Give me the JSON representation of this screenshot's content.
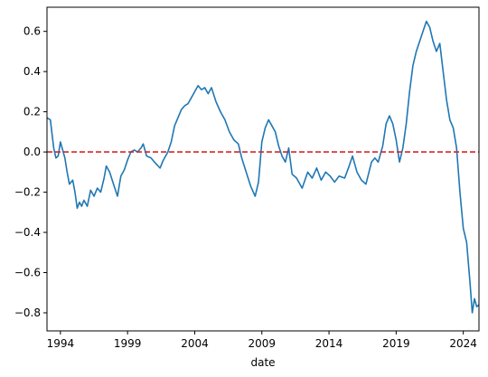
{
  "chart_data": {
    "type": "line",
    "title": "",
    "xlabel": "date",
    "ylabel": "",
    "xlim": [
      "1993-01",
      "2025-03"
    ],
    "ylim": [
      -0.89,
      0.72
    ],
    "grid": false,
    "legend": "none",
    "x_ticks": [
      {
        "value": "1994-01",
        "label": "1994"
      },
      {
        "value": "1999-01",
        "label": "1999"
      },
      {
        "value": "2004-01",
        "label": "2004"
      },
      {
        "value": "2009-01",
        "label": "2009"
      },
      {
        "value": "2014-01",
        "label": "2014"
      },
      {
        "value": "2019-01",
        "label": "2019"
      },
      {
        "value": "2024-01",
        "label": "2024"
      }
    ],
    "y_ticks": [
      {
        "value": 0.6,
        "label": "0.6"
      },
      {
        "value": 0.4,
        "label": "0.4"
      },
      {
        "value": 0.2,
        "label": "0.2"
      },
      {
        "value": 0.0,
        "label": "0.0"
      },
      {
        "value": -0.2,
        "label": "−0.2"
      },
      {
        "value": -0.4,
        "label": "−0.4"
      },
      {
        "value": -0.6,
        "label": "−0.6"
      },
      {
        "value": -0.8,
        "label": "−0.8"
      }
    ],
    "series": [
      {
        "color": "#1f77b4",
        "points": [
          {
            "x": "1993-01",
            "y": 0.17
          },
          {
            "x": "1993-04",
            "y": 0.16
          },
          {
            "x": "1993-07",
            "y": 0.02
          },
          {
            "x": "1993-09",
            "y": -0.03
          },
          {
            "x": "1993-11",
            "y": -0.02
          },
          {
            "x": "1994-01",
            "y": 0.05
          },
          {
            "x": "1994-03",
            "y": 0.01
          },
          {
            "x": "1994-05",
            "y": -0.03
          },
          {
            "x": "1994-07",
            "y": -0.1
          },
          {
            "x": "1994-09",
            "y": -0.16
          },
          {
            "x": "1994-12",
            "y": -0.14
          },
          {
            "x": "1995-02",
            "y": -0.2
          },
          {
            "x": "1995-04",
            "y": -0.28
          },
          {
            "x": "1995-06",
            "y": -0.25
          },
          {
            "x": "1995-08",
            "y": -0.27
          },
          {
            "x": "1995-10",
            "y": -0.24
          },
          {
            "x": "1996-01",
            "y": -0.27
          },
          {
            "x": "1996-04",
            "y": -0.19
          },
          {
            "x": "1996-07",
            "y": -0.22
          },
          {
            "x": "1996-10",
            "y": -0.18
          },
          {
            "x": "1997-01",
            "y": -0.2
          },
          {
            "x": "1997-04",
            "y": -0.13
          },
          {
            "x": "1997-06",
            "y": -0.07
          },
          {
            "x": "1997-09",
            "y": -0.1
          },
          {
            "x": "1998-01",
            "y": -0.17
          },
          {
            "x": "1998-04",
            "y": -0.22
          },
          {
            "x": "1998-07",
            "y": -0.12
          },
          {
            "x": "1998-10",
            "y": -0.09
          },
          {
            "x": "1999-01",
            "y": -0.04
          },
          {
            "x": "1999-04",
            "y": 0.0
          },
          {
            "x": "1999-07",
            "y": 0.01
          },
          {
            "x": "1999-10",
            "y": 0.0
          },
          {
            "x": "2000-01",
            "y": 0.02
          },
          {
            "x": "2000-03",
            "y": 0.04
          },
          {
            "x": "2000-06",
            "y": -0.02
          },
          {
            "x": "2000-10",
            "y": -0.03
          },
          {
            "x": "2001-01",
            "y": -0.05
          },
          {
            "x": "2001-06",
            "y": -0.08
          },
          {
            "x": "2001-09",
            "y": -0.04
          },
          {
            "x": "2002-01",
            "y": 0.0
          },
          {
            "x": "2002-04",
            "y": 0.05
          },
          {
            "x": "2002-07",
            "y": 0.13
          },
          {
            "x": "2002-10",
            "y": 0.17
          },
          {
            "x": "2003-01",
            "y": 0.21
          },
          {
            "x": "2003-04",
            "y": 0.23
          },
          {
            "x": "2003-07",
            "y": 0.24
          },
          {
            "x": "2003-10",
            "y": 0.27
          },
          {
            "x": "2004-01",
            "y": 0.3
          },
          {
            "x": "2004-04",
            "y": 0.33
          },
          {
            "x": "2004-07",
            "y": 0.31
          },
          {
            "x": "2004-10",
            "y": 0.32
          },
          {
            "x": "2005-01",
            "y": 0.29
          },
          {
            "x": "2005-04",
            "y": 0.32
          },
          {
            "x": "2005-08",
            "y": 0.25
          },
          {
            "x": "2005-12",
            "y": 0.2
          },
          {
            "x": "2006-04",
            "y": 0.16
          },
          {
            "x": "2006-08",
            "y": 0.1
          },
          {
            "x": "2006-12",
            "y": 0.06
          },
          {
            "x": "2007-04",
            "y": 0.04
          },
          {
            "x": "2007-07",
            "y": -0.03
          },
          {
            "x": "2007-11",
            "y": -0.1
          },
          {
            "x": "2008-03",
            "y": -0.17
          },
          {
            "x": "2008-07",
            "y": -0.22
          },
          {
            "x": "2008-10",
            "y": -0.15
          },
          {
            "x": "2009-01",
            "y": 0.05
          },
          {
            "x": "2009-04",
            "y": 0.12
          },
          {
            "x": "2009-07",
            "y": 0.16
          },
          {
            "x": "2009-10",
            "y": 0.13
          },
          {
            "x": "2010-01",
            "y": 0.1
          },
          {
            "x": "2010-04",
            "y": 0.03
          },
          {
            "x": "2010-07",
            "y": -0.02
          },
          {
            "x": "2010-10",
            "y": -0.05
          },
          {
            "x": "2011-01",
            "y": 0.02
          },
          {
            "x": "2011-04",
            "y": -0.11
          },
          {
            "x": "2011-08",
            "y": -0.13
          },
          {
            "x": "2012-01",
            "y": -0.18
          },
          {
            "x": "2012-06",
            "y": -0.1
          },
          {
            "x": "2012-10",
            "y": -0.13
          },
          {
            "x": "2013-02",
            "y": -0.08
          },
          {
            "x": "2013-06",
            "y": -0.14
          },
          {
            "x": "2013-10",
            "y": -0.1
          },
          {
            "x": "2014-02",
            "y": -0.12
          },
          {
            "x": "2014-06",
            "y": -0.15
          },
          {
            "x": "2014-10",
            "y": -0.12
          },
          {
            "x": "2015-03",
            "y": -0.13
          },
          {
            "x": "2015-07",
            "y": -0.07
          },
          {
            "x": "2015-10",
            "y": -0.02
          },
          {
            "x": "2016-02",
            "y": -0.1
          },
          {
            "x": "2016-06",
            "y": -0.14
          },
          {
            "x": "2016-10",
            "y": -0.16
          },
          {
            "x": "2017-03",
            "y": -0.05
          },
          {
            "x": "2017-06",
            "y": -0.03
          },
          {
            "x": "2017-09",
            "y": -0.05
          },
          {
            "x": "2018-01",
            "y": 0.03
          },
          {
            "x": "2018-04",
            "y": 0.14
          },
          {
            "x": "2018-07",
            "y": 0.18
          },
          {
            "x": "2018-10",
            "y": 0.14
          },
          {
            "x": "2019-01",
            "y": 0.06
          },
          {
            "x": "2019-04",
            "y": -0.05
          },
          {
            "x": "2019-07",
            "y": 0.02
          },
          {
            "x": "2019-10",
            "y": 0.14
          },
          {
            "x": "2020-01",
            "y": 0.3
          },
          {
            "x": "2020-04",
            "y": 0.43
          },
          {
            "x": "2020-07",
            "y": 0.5
          },
          {
            "x": "2020-10",
            "y": 0.55
          },
          {
            "x": "2021-01",
            "y": 0.6
          },
          {
            "x": "2021-04",
            "y": 0.65
          },
          {
            "x": "2021-07",
            "y": 0.62
          },
          {
            "x": "2021-10",
            "y": 0.55
          },
          {
            "x": "2022-01",
            "y": 0.5
          },
          {
            "x": "2022-04",
            "y": 0.54
          },
          {
            "x": "2022-07",
            "y": 0.4
          },
          {
            "x": "2022-10",
            "y": 0.26
          },
          {
            "x": "2023-01",
            "y": 0.16
          },
          {
            "x": "2023-04",
            "y": 0.12
          },
          {
            "x": "2023-07",
            "y": 0.02
          },
          {
            "x": "2023-10",
            "y": -0.2
          },
          {
            "x": "2024-01",
            "y": -0.38
          },
          {
            "x": "2024-04",
            "y": -0.45
          },
          {
            "x": "2024-07",
            "y": -0.65
          },
          {
            "x": "2024-09",
            "y": -0.8
          },
          {
            "x": "2024-11",
            "y": -0.73
          },
          {
            "x": "2025-01",
            "y": -0.77
          },
          {
            "x": "2025-03",
            "y": -0.76
          }
        ]
      }
    ],
    "reference_lines": [
      {
        "y": 0.0,
        "color": "#d62728",
        "style": "dashed"
      }
    ]
  }
}
